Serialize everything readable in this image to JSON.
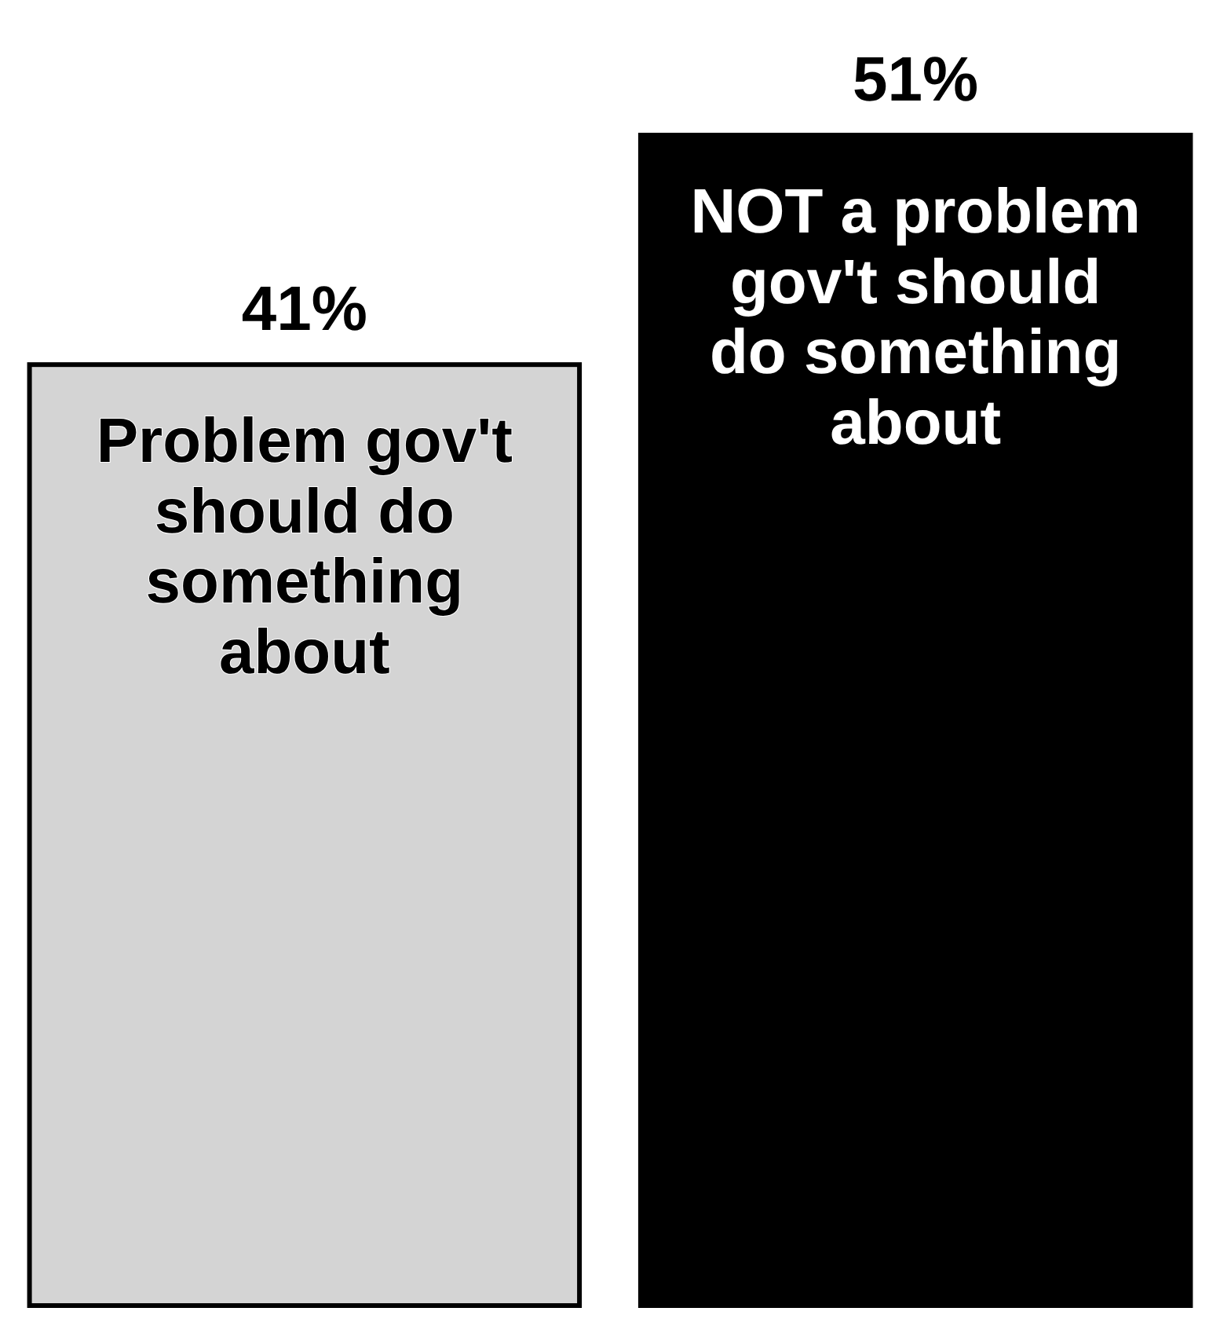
{
  "chart_data": {
    "type": "bar",
    "categories": [
      "Problem gov't should do something about",
      "NOT a problem gov't should do something about"
    ],
    "values": [
      41,
      51
    ],
    "colors": [
      "#d4d4d4",
      "#000000"
    ],
    "value_labels": [
      "41%",
      "51%"
    ]
  }
}
